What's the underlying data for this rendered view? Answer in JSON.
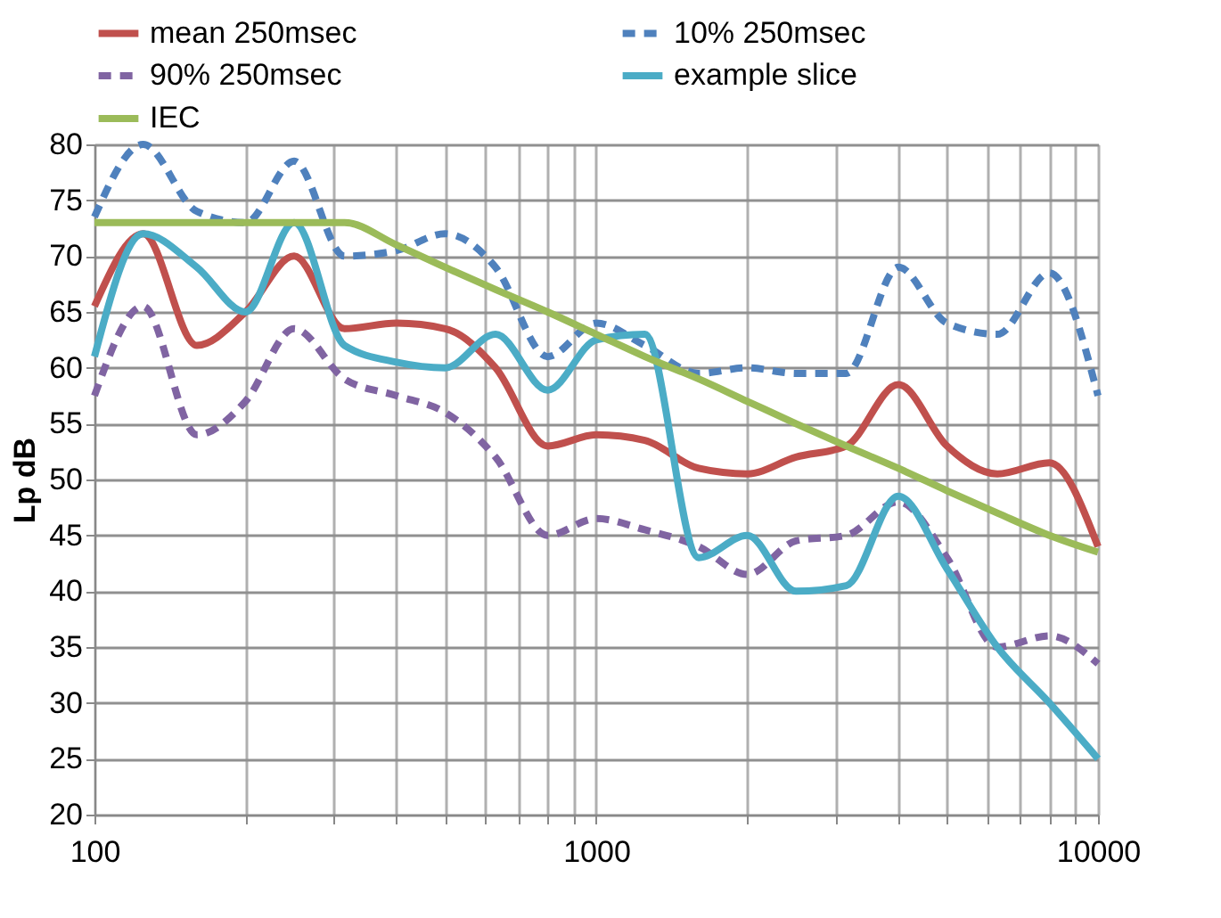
{
  "chart_data": {
    "type": "line",
    "ylabel": "Lp dB",
    "log": "x",
    "grid": true,
    "legend": "top",
    "marker": "none",
    "x": [
      100,
      125,
      160,
      200,
      250,
      315,
      400,
      500,
      630,
      800,
      1000,
      1250,
      1600,
      2000,
      2500,
      3150,
      4000,
      5000,
      6300,
      8000,
      10000
    ],
    "xlim": [
      100,
      10000
    ],
    "xticks": [
      100,
      {
        "value": 200,
        "label": null
      },
      {
        "value": 300,
        "label": null
      },
      {
        "value": 400,
        "label": null
      },
      {
        "value": 500,
        "label": null
      },
      {
        "value": 600,
        "label": null
      },
      {
        "value": 700,
        "label": null
      },
      {
        "value": 800,
        "label": null
      },
      {
        "value": 900,
        "label": null
      },
      1000,
      {
        "value": 2000,
        "label": null
      },
      {
        "value": 3000,
        "label": null
      },
      {
        "value": 4000,
        "label": null
      },
      {
        "value": 5000,
        "label": null
      },
      {
        "value": 6000,
        "label": null
      },
      {
        "value": 7000,
        "label": null
      },
      {
        "value": 8000,
        "label": null
      },
      {
        "value": 9000,
        "label": null
      },
      10000
    ],
    "ylim": [
      20,
      80
    ],
    "yticks": [
      20,
      25,
      30,
      35,
      40,
      45,
      50,
      55,
      60,
      65,
      70,
      75,
      80
    ],
    "series": [
      {
        "name": "mean 250msec",
        "color": "#c0504d",
        "line_style": "solid",
        "values": [
          65.5,
          72,
          62,
          65,
          70,
          63.5,
          64,
          63.5,
          60,
          53,
          54,
          53.5,
          51,
          50.5,
          52,
          53,
          58.5,
          53,
          50.5,
          51.5,
          44
        ]
      },
      {
        "name": "10% 250msec",
        "color": "#4f81bd",
        "line_style": "dashed",
        "values": [
          73.5,
          80,
          74,
          73,
          78.5,
          70,
          70.5,
          72,
          69,
          61,
          64,
          62,
          59.5,
          60,
          59.5,
          59.5,
          69,
          64,
          63,
          68.5,
          57.5
        ]
      },
      {
        "name": "90% 250msec",
        "color": "#8064a2",
        "line_style": "dashed",
        "values": [
          57.5,
          65.5,
          54,
          57,
          63.5,
          59,
          57.5,
          56,
          52,
          45,
          46.5,
          45.5,
          44,
          41.5,
          44.5,
          45,
          48,
          43,
          35,
          36,
          33.5
        ]
      },
      {
        "name": "example slice",
        "color": "#4bacc6",
        "line_style": "solid",
        "values": [
          61,
          72,
          69,
          65,
          73,
          62,
          60.5,
          60,
          63,
          58,
          62.5,
          63,
          43,
          45,
          40,
          40.5,
          48.5,
          42,
          35,
          30,
          25
        ]
      },
      {
        "name": "IEC",
        "color": "#9bbb59",
        "line_style": "solid",
        "values": [
          73,
          73,
          73,
          73,
          73,
          73,
          71,
          69,
          67,
          65,
          63,
          61,
          59,
          57,
          55,
          53,
          51,
          49,
          47,
          45,
          43.5
        ]
      }
    ]
  }
}
